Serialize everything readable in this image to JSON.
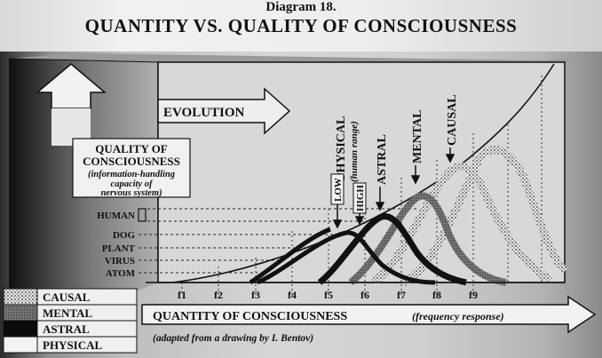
{
  "header": {
    "diagram_number": "Diagram 18.",
    "title": "QUANTITY VS. QUALITY OF CONSCIOUSNESS"
  },
  "evolution_label": "EVOLUTION",
  "y_axis": {
    "title_lines": [
      "QUALITY OF",
      "CONSCIOUSNESS"
    ],
    "subtitle_lines": [
      "(information-handling",
      "capacity of",
      "nervous system)"
    ],
    "levels": [
      "HUMAN",
      "DOG",
      "PLANT",
      "VIRUS",
      "ATOM"
    ]
  },
  "x_axis": {
    "title": "QUANTITY OF CONSCIOUSNESS",
    "subtitle": "(frequency response)",
    "ticks": [
      "f1",
      "f2",
      "f3",
      "f4",
      "f5",
      "f6",
      "f7",
      "f8",
      "f9"
    ]
  },
  "peak_labels": {
    "physical": "PHYSICAL",
    "human_range": "(human range)",
    "low": "LOW",
    "high": "HIGH",
    "astral": "ASTRAL",
    "mental": "MENTAL",
    "causal": "CAUSAL"
  },
  "legend": {
    "items": [
      {
        "label": "CAUSAL",
        "pattern": "dots"
      },
      {
        "label": "MENTAL",
        "pattern": "shaded"
      },
      {
        "label": "ASTRAL",
        "pattern": "black"
      },
      {
        "label": "PHYSICAL",
        "pattern": "blank"
      }
    ]
  },
  "credit": "(adapted from a drawing by I. Bentov)"
}
